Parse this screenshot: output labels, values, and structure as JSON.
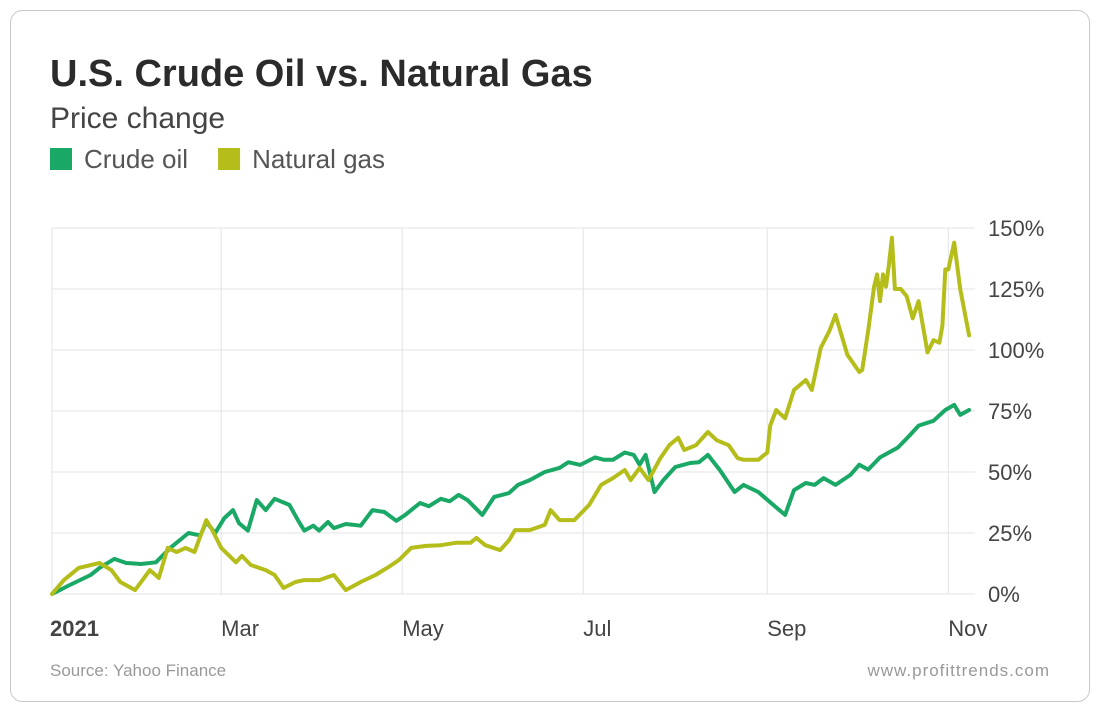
{
  "chart_data": {
    "type": "line",
    "title": "U.S. Crude Oil vs. Natural Gas",
    "subtitle": "Price change",
    "source": "Source: Yahoo Finance",
    "credit": "www.profittrends.com",
    "legend": "top-left",
    "grid": true,
    "xlim": [
      2,
      313
    ],
    "xticks": [
      {
        "value": 0,
        "label": "2021"
      },
      {
        "value": 59,
        "label": "Mar"
      },
      {
        "value": 120,
        "label": "May"
      },
      {
        "value": 181,
        "label": "Jul"
      },
      {
        "value": 243,
        "label": "Sep"
      },
      {
        "value": 304,
        "label": "Nov"
      }
    ],
    "ylim": [
      0,
      150
    ],
    "yticks": [
      {
        "value": 0,
        "label": "0%"
      },
      {
        "value": 25,
        "label": "25%"
      },
      {
        "value": 50,
        "label": "50%"
      },
      {
        "value": 75,
        "label": "75%"
      },
      {
        "value": 100,
        "label": "100%"
      },
      {
        "value": 125,
        "label": "125%"
      },
      {
        "value": 150,
        "label": "150%"
      }
    ],
    "series": [
      {
        "name": "Crude oil",
        "color": "#1aa866",
        "x": [
          2,
          8,
          15,
          18,
          23,
          27,
          32,
          37,
          42,
          48,
          52,
          54,
          57,
          60,
          63,
          65,
          68,
          71,
          74,
          77,
          82,
          85,
          87,
          90,
          92,
          95,
          97,
          101,
          106,
          110,
          114,
          118,
          121,
          126,
          129,
          133,
          136,
          139,
          142,
          147,
          151,
          156,
          159,
          163,
          168,
          173,
          176,
          180,
          185,
          188,
          191,
          195,
          198,
          200,
          202,
          205,
          208,
          212,
          217,
          220,
          223,
          227,
          232,
          235,
          240,
          245,
          249,
          252,
          256,
          259,
          262,
          266,
          271,
          274,
          277,
          281,
          284,
          287,
          291,
          294,
          299,
          303,
          306,
          308,
          311
        ],
        "values": [
          0,
          3.7,
          7.8,
          10.7,
          14.4,
          12.7,
          12.3,
          13,
          19,
          25,
          24,
          29.5,
          25,
          31,
          34.4,
          29,
          26,
          38.5,
          34.4,
          39,
          36.5,
          30,
          26,
          28,
          26,
          29.5,
          27,
          28.7,
          28,
          34.4,
          33.6,
          30,
          32.4,
          37.3,
          36,
          39,
          38,
          40.6,
          38.5,
          32.4,
          39.8,
          41.4,
          44.7,
          46.7,
          50,
          51.7,
          54,
          52.9,
          56,
          55,
          55,
          58,
          57,
          53,
          57,
          41.8,
          46.7,
          52,
          53.7,
          54,
          57,
          50.8,
          41.8,
          44.7,
          41.8,
          36.5,
          32.4,
          42.6,
          45.5,
          44.7,
          47.5,
          44.7,
          48.8,
          53,
          51,
          56,
          58,
          60,
          65,
          69,
          71,
          75.4,
          77.5,
          73.4,
          75.4
        ]
      },
      {
        "name": "Natural gas",
        "color": "#b5bd1a",
        "x": [
          2,
          6,
          11,
          18,
          22,
          25,
          30,
          35,
          38,
          41,
          44,
          47,
          50,
          54,
          56,
          59,
          64,
          66,
          69,
          74,
          77,
          80,
          84,
          87,
          92,
          97,
          101,
          106,
          111,
          116,
          119,
          123,
          128,
          133,
          138,
          143,
          145,
          148,
          153,
          156,
          158,
          163,
          168,
          170,
          173,
          178,
          183,
          187,
          191,
          195,
          197,
          200,
          203,
          207,
          210,
          213,
          215,
          219,
          223,
          226,
          230,
          233,
          235,
          240,
          243,
          244,
          246,
          249,
          252,
          256,
          258,
          261,
          264,
          266,
          270,
          274,
          275,
          277,
          279,
          280,
          281,
          282,
          283,
          284,
          285,
          286,
          288,
          290,
          292,
          294,
          297,
          299,
          301,
          302,
          303,
          304,
          306,
          308,
          311
        ],
        "values": [
          0,
          5.7,
          10.7,
          12.7,
          9.8,
          4.9,
          1.6,
          9.8,
          6.6,
          18.9,
          17.2,
          18.9,
          17.2,
          30.3,
          26.2,
          18.9,
          13,
          15.6,
          11.9,
          9.8,
          7.8,
          2.5,
          4.9,
          5.7,
          5.7,
          7.8,
          1.6,
          4.9,
          7.8,
          11.5,
          14,
          18.9,
          19.7,
          20,
          21,
          21,
          23,
          20,
          18,
          22,
          26.2,
          26.2,
          28.3,
          34.4,
          30.3,
          30.3,
          36.5,
          44.7,
          47.5,
          50.8,
          46.7,
          51.7,
          46.7,
          55.7,
          61,
          64,
          59,
          61,
          66.4,
          63,
          61,
          55.7,
          55,
          55,
          58,
          69,
          75.4,
          72,
          83.6,
          87.7,
          83.6,
          100.8,
          108,
          114.4,
          98,
          91,
          91.8,
          108,
          126,
          131,
          120,
          131,
          126,
          135,
          146,
          125,
          125,
          122,
          113,
          120,
          99,
          104,
          103,
          110,
          133,
          133,
          144,
          125,
          106
        ]
      }
    ]
  }
}
